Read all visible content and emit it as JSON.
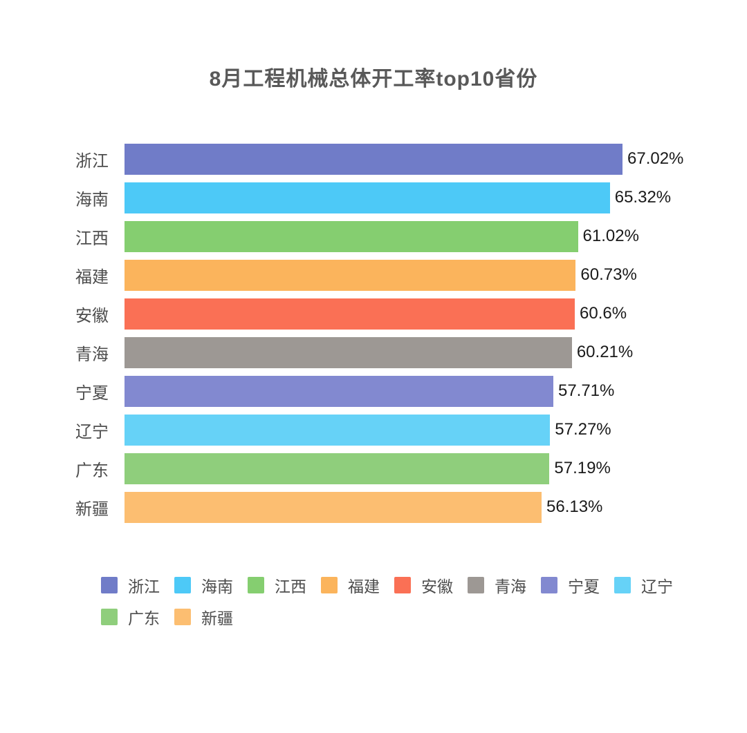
{
  "page": {
    "background": "#ffffff"
  },
  "chart_data": {
    "type": "bar",
    "orientation": "horizontal",
    "title": "8月工程机械总体开工率top10省份",
    "title_color": "#595959",
    "categories": [
      "浙江",
      "海南",
      "江西",
      "福建",
      "安徽",
      "青海",
      "宁夏",
      "辽宁",
      "广东",
      "新疆"
    ],
    "values": [
      67.02,
      65.32,
      61.02,
      60.73,
      60.6,
      60.21,
      57.71,
      57.27,
      57.19,
      56.13
    ],
    "value_labels": [
      "67.02%",
      "65.32%",
      "61.02%",
      "60.73%",
      "60.6%",
      "60.21%",
      "57.71%",
      "57.27%",
      "57.19%",
      "56.13%"
    ],
    "bar_colors": [
      "#707cc8",
      "#4dc9f7",
      "#85ce70",
      "#fbb45c",
      "#fa7055",
      "#9d9894",
      "#8289d0",
      "#66d2f7",
      "#8fce7c",
      "#fcbe71"
    ],
    "unit": "%",
    "xlim": [
      0,
      67.02
    ],
    "grid": false,
    "axis_labels_visible": false,
    "category_label_color": "#4d4d4d",
    "value_label_color": "#1a1a1a",
    "legend_position": "bottom-left",
    "legend_text_color": "#4d4d4d"
  }
}
